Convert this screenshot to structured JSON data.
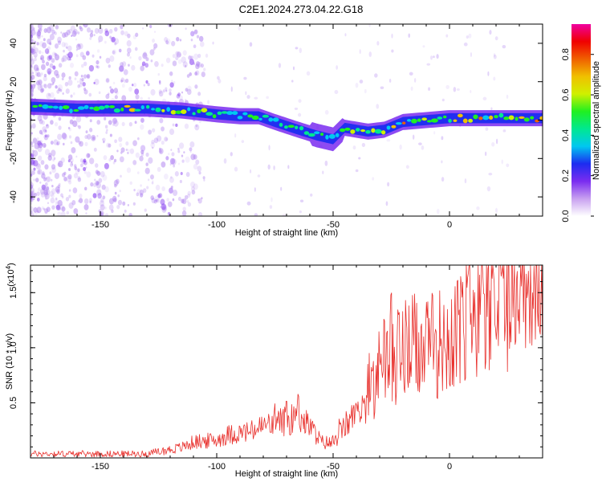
{
  "title": "C2E1.2024.273.04.22.G18",
  "colors": {
    "line": "#e8302c",
    "axis": "#000000",
    "ridge_outer": "#7a2cf0",
    "ridge_inner": "#1c2cf0",
    "noise": "#b084f0"
  },
  "chart_data": [
    {
      "type": "heatmap",
      "xlabel": "Height of straight line (km)",
      "ylabel": "Frequency (Hz)",
      "xlim": [
        -180,
        40
      ],
      "ylim": [
        -50,
        50
      ],
      "xticks": [
        -150,
        -100,
        -50,
        0
      ],
      "yticks": [
        -40,
        -20,
        0,
        20,
        40
      ],
      "ridge": {
        "x": [
          -180,
          -160,
          -130,
          -115,
          -100,
          -90,
          -82,
          -75,
          -65,
          -57,
          -50,
          -45,
          -35,
          -28,
          -20,
          -10,
          0,
          10,
          20,
          40
        ],
        "y": [
          7,
          6,
          6,
          5,
          3,
          2,
          2,
          -1,
          -5,
          -8,
          -10,
          -4,
          -6,
          -5,
          -1,
          0,
          1,
          1,
          1,
          1
        ]
      },
      "colorbar": {
        "label": "Normalized spectral amplitude",
        "ticks": [
          0.0,
          0.2,
          0.4,
          0.6,
          0.8
        ],
        "range": [
          0,
          0.95
        ],
        "stops": [
          "#ffffff",
          "#c8a0f0",
          "#7a2cf0",
          "#1c2cf0",
          "#00c8f0",
          "#00e890",
          "#20f020",
          "#d0f000",
          "#f0c000",
          "#f06000",
          "#f00000",
          "#f000a0"
        ]
      }
    },
    {
      "type": "line",
      "xlabel": "Height of straight line (km)",
      "ylabel": "SNR (10 * v/v)",
      "multiplier": "(x10",
      "multiplier_exp": "4",
      "multiplier_close": ")",
      "xlim": [
        -180,
        40
      ],
      "ylim": [
        0,
        1.75
      ],
      "xticks": [
        -150,
        -100,
        -50,
        0
      ],
      "yticks": [
        0.5,
        1.0,
        1.5
      ],
      "ytick_labels": [
        "0.5",
        "1.0",
        "1.5"
      ],
      "series": [
        {
          "envelope": {
            "x": [
              -180,
              -130,
              -125,
              -115,
              -110,
              -100,
              -95,
              -85,
              -80,
              -70,
              -65,
              -60,
              -55,
              -50,
              -45,
              -40,
              -35,
              -30,
              -28,
              -25,
              -20,
              -15,
              -10,
              -5,
              0,
              5,
              10,
              15,
              20,
              25,
              30,
              35,
              40
            ],
            "y": [
              0.04,
              0.04,
              0.06,
              0.1,
              0.15,
              0.17,
              0.22,
              0.25,
              0.3,
              0.35,
              0.38,
              0.3,
              0.15,
              0.14,
              0.3,
              0.42,
              0.55,
              0.85,
              0.9,
              0.95,
              1.0,
              1.05,
              1.0,
              1.1,
              1.15,
              1.3,
              1.4,
              1.5,
              1.5,
              1.55,
              1.6,
              1.63,
              1.65
            ]
          },
          "spikes": {
            "x": [
              -75,
              -70,
              -65,
              -40,
              -33,
              -28,
              -25,
              -22,
              -18,
              -12,
              -6,
              5,
              8,
              15
            ],
            "y": [
              0.5,
              0.55,
              0.6,
              0.5,
              0.8,
              1.35,
              1.5,
              1.4,
              1.2,
              1.25,
              1.2,
              1.65,
              1.75,
              1.6
            ]
          }
        }
      ]
    }
  ]
}
